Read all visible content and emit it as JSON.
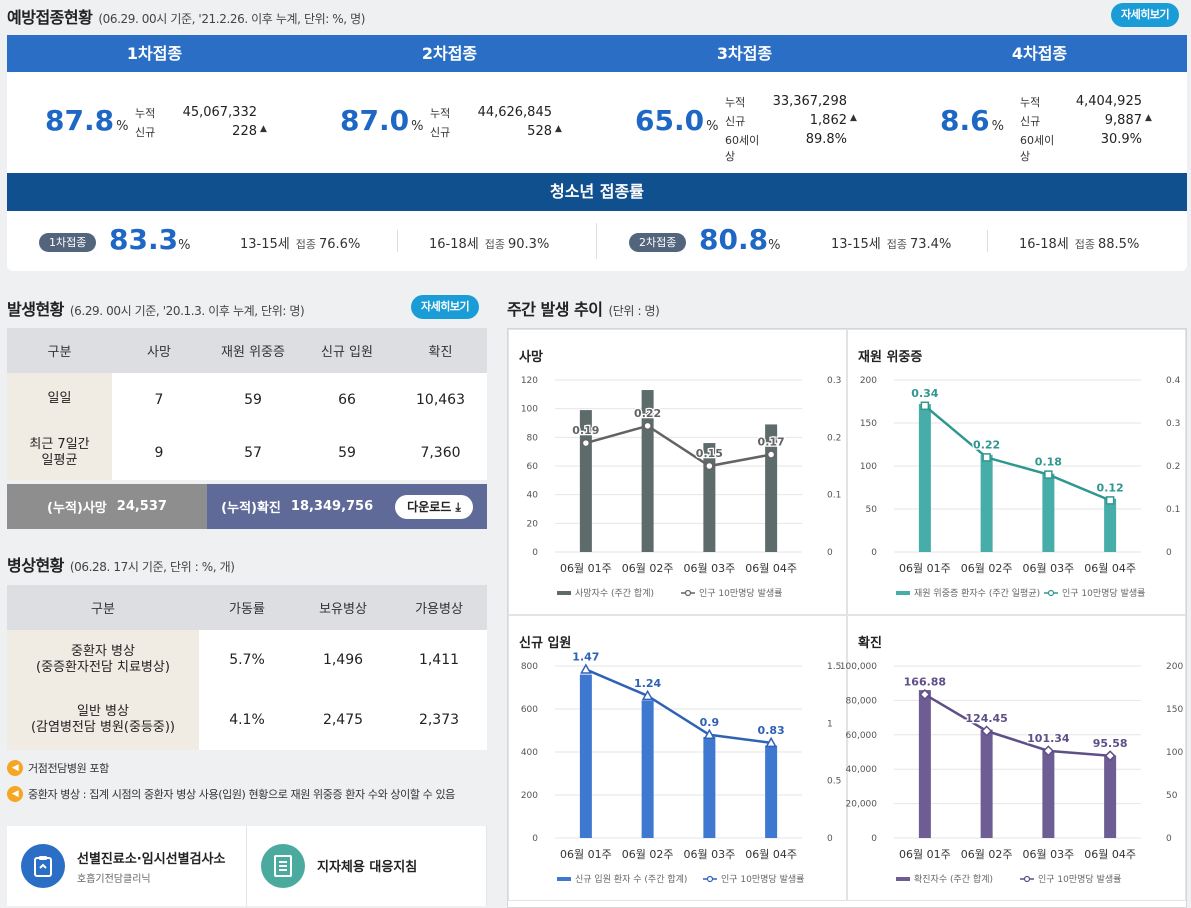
{
  "vacc": {
    "title": "예방접종현황",
    "subtitle": "(06.29. 00시 기준, '21.2.26. 이후 누계, 단위: %, 명)",
    "more": "자세히보기",
    "doses": [
      {
        "label": "1차접종",
        "pct": "87.8",
        "unit": "%",
        "rows": [
          {
            "k": "누적",
            "v": "45,067,332"
          },
          {
            "k": "신규",
            "v": "228",
            "up": "▲"
          }
        ]
      },
      {
        "label": "2차접종",
        "pct": "87.0",
        "unit": "%",
        "rows": [
          {
            "k": "누적",
            "v": "44,626,845"
          },
          {
            "k": "신규",
            "v": "528",
            "up": "▲"
          }
        ]
      },
      {
        "label": "3차접종",
        "pct": "65.0",
        "unit": "%",
        "rows": [
          {
            "k": "누적",
            "v": "33,367,298"
          },
          {
            "k": "신규",
            "v": "1,862",
            "up": "▲"
          },
          {
            "k": "60세이상",
            "v": "89.8%"
          }
        ]
      },
      {
        "label": "4차접종",
        "pct": "8.6",
        "unit": "%",
        "rows": [
          {
            "k": "누적",
            "v": "4,404,925"
          },
          {
            "k": "신규",
            "v": "9,887",
            "up": "▲"
          },
          {
            "k": "60세이상",
            "v": "30.9%"
          }
        ]
      }
    ],
    "teen": {
      "title": "청소년 접종률",
      "lab": "접종",
      "groups": [
        {
          "pill": "1차접종",
          "pct": "83.3",
          "unit": "%",
          "a_age": "13-15세",
          "a_val": "76.6%",
          "b_age": "16-18세",
          "b_val": "90.3%"
        },
        {
          "pill": "2차접종",
          "pct": "80.8",
          "unit": "%",
          "a_age": "13-15세",
          "a_val": "73.4%",
          "b_age": "16-18세",
          "b_val": "88.5%"
        }
      ]
    }
  },
  "occur": {
    "title": "발생현황",
    "subtitle": "(6.29. 00시 기준, '20.1.3. 이후 누계, 단위: 명)",
    "more": "자세히보기",
    "headers": [
      "구분",
      "사망",
      "재원 위중증",
      "신규 입원",
      "확진"
    ],
    "rows": [
      {
        "label": "일일",
        "vals": [
          "7",
          "59",
          "66",
          "10,463"
        ]
      },
      {
        "label": "최근 7일간\n일평균",
        "vals": [
          "9",
          "57",
          "59",
          "7,360"
        ]
      }
    ],
    "cum_death_label": "(누적)사망",
    "cum_death": "24,537",
    "cum_conf_label": "(누적)확진",
    "cum_conf": "18,349,756",
    "download": "다운로드"
  },
  "beds": {
    "title": "병상현황",
    "subtitle": "(06.28. 17시 기준, 단위 : %, 개)",
    "headers": [
      "구분",
      "가동률",
      "보유병상",
      "가용병상"
    ],
    "rows": [
      {
        "label": "중환자 병상\n(중증환자전담 치료병상)",
        "vals": [
          "5.7%",
          "1,496",
          "1,411"
        ]
      },
      {
        "label": "일반 병상\n(감염병전담 병원(중등중))",
        "vals": [
          "4.1%",
          "2,475",
          "2,373"
        ]
      }
    ],
    "notes": [
      "거점전담병원 포함",
      "중환자 병상 : 집계 시점의 중환자 병상 사용(입원) 현황으로 재원 위중증 환자 수와 상이할 수 있음"
    ]
  },
  "links": [
    {
      "title": "선별진료소·임시선별검사소",
      "sub": "호흡기전담클리닉",
      "color": "#2a6ec5"
    },
    {
      "title": "지자체용 대응지침",
      "sub": "",
      "color": "#4aaa9e"
    }
  ],
  "weekly": {
    "title": "주간 발생 추이",
    "subtitle": "(단위 : 명)"
  },
  "chart_data": [
    {
      "type": "bar",
      "title": "사망",
      "categories": [
        "06월 01주",
        "06월 02주",
        "06월 03주",
        "06월 04주"
      ],
      "series": [
        {
          "name": "사망자수 (주간 합계)",
          "values": [
            99,
            113,
            76,
            89
          ]
        },
        {
          "name": "인구 10만명당 발생률",
          "values": [
            0.19,
            0.22,
            0.15,
            0.17
          ]
        }
      ],
      "ylim": [
        0,
        120
      ],
      "yticks": [
        "0",
        "20",
        "40",
        "60",
        "80",
        "100",
        "120"
      ],
      "y2lim": [
        0,
        0.3
      ],
      "y2ticks": [
        "0",
        "0.1",
        "0.2",
        "0.3"
      ],
      "labels": [
        "0.19",
        "0.22",
        "0.15",
        "0.17"
      ],
      "color": "#5e6b6b",
      "lineColor": "#636363",
      "marker": "circle"
    },
    {
      "type": "bar",
      "title": "재원 위중증",
      "categories": [
        "06월 01주",
        "06월 02주",
        "06월 03주",
        "06월 04주"
      ],
      "series": [
        {
          "name": "재원 위중증 환자수 (주간 일평균)",
          "values": [
            172,
            113,
            91,
            62
          ]
        },
        {
          "name": "인구 10만명당 발생률",
          "values": [
            0.34,
            0.22,
            0.18,
            0.12
          ]
        }
      ],
      "ylim": [
        0,
        200
      ],
      "yticks": [
        "0",
        "50",
        "100",
        "150",
        "200"
      ],
      "y2lim": [
        0,
        0.4
      ],
      "y2ticks": [
        "0",
        "0.1",
        "0.2",
        "0.3",
        "0.4"
      ],
      "labels": [
        "0.34",
        "0.22",
        "0.18",
        "0.12"
      ],
      "color": "#46ada8",
      "lineColor": "#2f9690",
      "marker": "square"
    },
    {
      "type": "bar",
      "title": "신규 입원",
      "categories": [
        "06월 01주",
        "06월 02주",
        "06월 03주",
        "06월 04주"
      ],
      "series": [
        {
          "name": "신규 입원 환자 수 (주간 합계)",
          "values": [
            760,
            640,
            470,
            430
          ]
        },
        {
          "name": "인구 10만명당 발생률",
          "values": [
            1.47,
            1.24,
            0.9,
            0.83
          ]
        }
      ],
      "ylim": [
        0,
        800
      ],
      "yticks": [
        "0",
        "200",
        "400",
        "600",
        "800"
      ],
      "y2lim": [
        0,
        1.5
      ],
      "y2ticks": [
        "0",
        "0.5",
        "1",
        "1.5"
      ],
      "labels": [
        "1.47",
        "1.24",
        "0.9",
        "0.83"
      ],
      "color": "#3f78d0",
      "lineColor": "#2f62b5",
      "marker": "triangle"
    },
    {
      "type": "bar",
      "title": "확진",
      "categories": [
        "06월 01주",
        "06월 02주",
        "06월 03주",
        "06월 04주"
      ],
      "series": [
        {
          "name": "확진자수 (주간 합계)",
          "values": [
            86000,
            63000,
            51000,
            48000
          ]
        },
        {
          "name": "인구 10만명당 발생률",
          "values": [
            166.88,
            124.45,
            101.34,
            95.58
          ]
        }
      ],
      "ylim": [
        0,
        100000
      ],
      "yticks": [
        "0",
        "20,000",
        "40,000",
        "60,000",
        "80,000",
        "100,000"
      ],
      "y2lim": [
        0,
        200
      ],
      "y2ticks": [
        "0",
        "50",
        "100",
        "150",
        "200"
      ],
      "labels": [
        "166.88",
        "124.45",
        "101.34",
        "95.58"
      ],
      "color": "#6e5d94",
      "lineColor": "#5f4f88",
      "marker": "diamond"
    }
  ]
}
